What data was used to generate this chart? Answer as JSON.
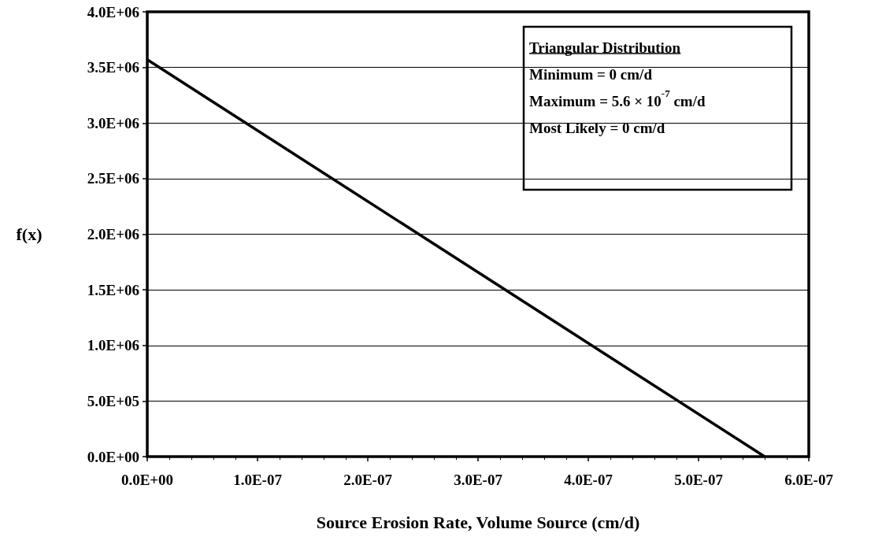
{
  "chart_data": {
    "type": "line",
    "xlabel": "Source Erosion Rate, Volume Source (cm/d)",
    "ylabel": "f(x)",
    "x": [
      0,
      5.6e-07
    ],
    "series": [
      {
        "color": "#000000",
        "values": [
          3570000,
          0
        ]
      }
    ],
    "xlim": [
      0,
      6e-07
    ],
    "xticks": [
      {
        "value": 0,
        "label": "0.0E+00"
      },
      {
        "value": 1e-07,
        "label": "1.0E-07"
      },
      {
        "value": 2e-07,
        "label": "2.0E-07"
      },
      {
        "value": 3e-07,
        "label": "3.0E-07"
      },
      {
        "value": 4e-07,
        "label": "4.0E-07"
      },
      {
        "value": 5e-07,
        "label": "5.0E-07"
      },
      {
        "value": 6e-07,
        "label": "6.0E-07"
      }
    ],
    "ylim": [
      0,
      4000000
    ],
    "yticks": [
      {
        "value": 0,
        "label": "0.0E+00"
      },
      {
        "value": 500000,
        "label": "5.0E+05"
      },
      {
        "value": 1000000,
        "label": "1.0E+06"
      },
      {
        "value": 1500000,
        "label": "1.5E+06"
      },
      {
        "value": 2000000,
        "label": "2.0E+06"
      },
      {
        "value": 2500000,
        "label": "2.5E+06"
      },
      {
        "value": 3000000,
        "label": "3.0E+06"
      },
      {
        "value": 3500000,
        "label": "3.5E+06"
      },
      {
        "value": 4000000,
        "label": "4.0E+06"
      }
    ],
    "grid": "y",
    "marker": "none",
    "line_style": "solid",
    "annotations": [
      "Triangular Distribution",
      "Minimum = 0 cm/d",
      "Maximum = 5.6 × 10$^{-7}$ cm/d",
      "Most Likely = 0 cm/d"
    ]
  }
}
